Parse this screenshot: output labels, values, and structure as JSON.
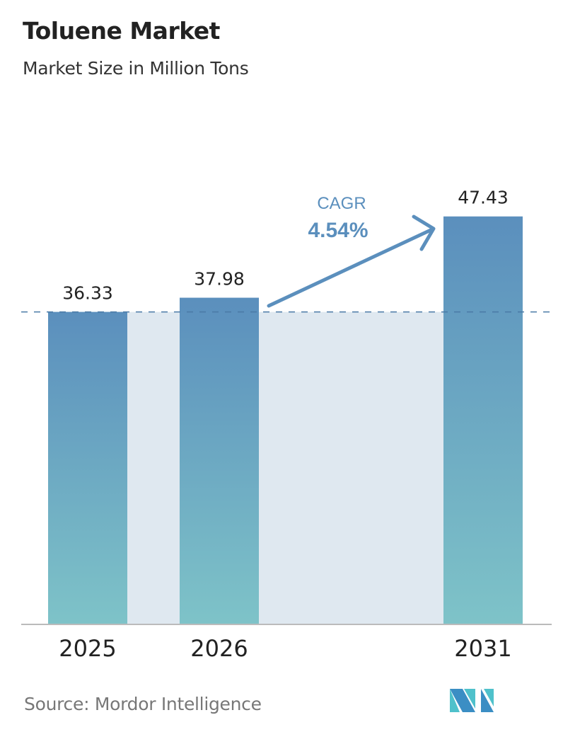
{
  "header": {
    "title": "Toluene Market",
    "subtitle": "Market Size in Million Tons"
  },
  "footer": {
    "source": "Source:  Mordor Intelligence",
    "logo_text": "Mordor Intelligence"
  },
  "chart_data": {
    "type": "bar",
    "categories": [
      "2025",
      "2026",
      "2031"
    ],
    "values": [
      36.33,
      37.98,
      47.43
    ],
    "value_labels": [
      "36.33",
      "37.98",
      "47.43"
    ],
    "annotation": {
      "label": "CAGR",
      "value": "4.54%"
    },
    "ylim": [
      0,
      50
    ],
    "grid": false,
    "colors": {
      "bar_top": "#5b8fbd",
      "bar_bottom": "#7ec3c8",
      "shade": "#dfe8f0",
      "accent": "#5b8fbd",
      "dashed_line": "#4a7aa6"
    }
  }
}
